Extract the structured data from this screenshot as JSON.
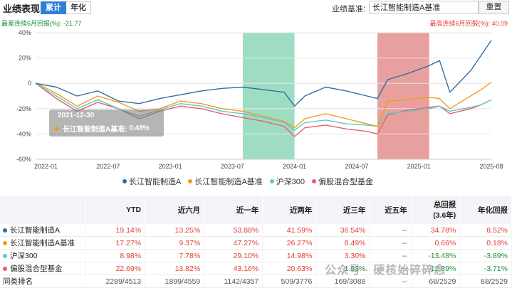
{
  "header": {
    "title": "业绩表现",
    "tabs": [
      "累计",
      "年化"
    ],
    "benchmark_label": "业绩基准:",
    "benchmark_value": "长江智能制造A基准",
    "reset_label": "重置"
  },
  "drawdown": {
    "min_text": "最差连续6月回报(%): -21.77",
    "max_text": "最高连续6月回报(%): 40.09"
  },
  "tooltip": {
    "date": "2021-12-30",
    "series": "长江智能制造A基准:",
    "value": "0.48%"
  },
  "colors": {
    "fund": "#2e6fa6",
    "benchmark": "#f39a1d",
    "csi300": "#5ec8c8",
    "hybrid": "#e5606a",
    "green_band": "#5fc79b",
    "red_band": "#d9605f"
  },
  "chart_data": {
    "type": "line",
    "x_ticks": [
      "2022-01",
      "2022-07",
      "2023-01",
      "2023-07",
      "2024-01",
      "2024-07",
      "2025-01",
      "2025-08"
    ],
    "y_ticks": [
      "40%",
      "20%",
      "0",
      "-20%",
      "-40%",
      "-60%"
    ],
    "ylim": [
      -60,
      40
    ],
    "grid": true,
    "legend_position": "bottom",
    "highlight_bands": [
      {
        "from": "2023-08",
        "to": "2024-01",
        "color": "green"
      },
      {
        "from": "2024-09",
        "to": "2025-02",
        "color": "red"
      }
    ],
    "x_dates": [
      "2021-12",
      "2022-02",
      "2022-04",
      "2022-06",
      "2022-08",
      "2022-10",
      "2022-12",
      "2023-02",
      "2023-04",
      "2023-06",
      "2023-08",
      "2023-10",
      "2023-12",
      "2024-01",
      "2024-02",
      "2024-04",
      "2024-06",
      "2024-08",
      "2024-09",
      "2024-10",
      "2024-12",
      "2025-02",
      "2025-03",
      "2025-04",
      "2025-06",
      "2025-07",
      "2025-08"
    ],
    "series": [
      {
        "name": "长江智能制造A",
        "values": [
          0,
          -3,
          -10,
          -6,
          -14,
          -16,
          -12,
          -9,
          -6,
          -4,
          -3,
          -5,
          -7,
          -18,
          -10,
          -3,
          -6,
          -10,
          -12,
          3,
          8,
          14,
          18,
          -7,
          10,
          22,
          34
        ]
      },
      {
        "name": "长江智能制造A基准",
        "values": [
          0.48,
          -8,
          -18,
          -10,
          -15,
          -22,
          -20,
          -14,
          -16,
          -20,
          -22,
          -26,
          -30,
          -35,
          -28,
          -24,
          -28,
          -32,
          -34,
          -14,
          -13,
          -11,
          -12,
          -20,
          -10,
          -5,
          1
        ]
      },
      {
        "name": "沪深300",
        "values": [
          0,
          -10,
          -20,
          -13,
          -20,
          -26,
          -21,
          -16,
          -18,
          -22,
          -24,
          -27,
          -31,
          -37,
          -31,
          -29,
          -32,
          -33,
          -34,
          -24,
          -22,
          -20,
          -18,
          -22,
          -19,
          -17,
          -13
        ]
      },
      {
        "name": "偏股混合型基金",
        "values": [
          0,
          -12,
          -22,
          -15,
          -20,
          -28,
          -22,
          -18,
          -20,
          -24,
          -27,
          -30,
          -34,
          -42,
          -35,
          -33,
          -36,
          -38,
          -40,
          -25,
          -21,
          -19,
          -18,
          -24,
          -20,
          -17,
          -13
        ]
      }
    ]
  },
  "table": {
    "headers": [
      "",
      "YTD",
      "近六月",
      "近一年",
      "近两年",
      "近三年",
      "近五年",
      "总回报\n(3.6年)",
      "年化回报"
    ],
    "rows": [
      {
        "name": "长江智能制造A",
        "values": [
          "19.14%",
          "13.25%",
          "53.88%",
          "41.59%",
          "36.54%",
          "--",
          "34.78%",
          "8.52%"
        ],
        "colors": [
          "red",
          "red",
          "red",
          "red",
          "red",
          "gray",
          "red",
          "red"
        ]
      },
      {
        "name": "长江智能制造A基准",
        "values": [
          "17.27%",
          "9.37%",
          "47.27%",
          "26.27%",
          "8.49%",
          "--",
          "0.66%",
          "0.18%"
        ],
        "colors": [
          "red",
          "red",
          "red",
          "red",
          "red",
          "gray",
          "red",
          "red"
        ]
      },
      {
        "name": "沪深300",
        "values": [
          "8.98%",
          "7.78%",
          "29.10%",
          "14.98%",
          "3.30%",
          "--",
          "-13.48%",
          "-3.89%"
        ],
        "colors": [
          "red",
          "red",
          "red",
          "red",
          "red",
          "gray",
          "green",
          "green"
        ]
      },
      {
        "name": "偏股混合型基金",
        "values": [
          "22.69%",
          "13.82%",
          "43.16%",
          "20.63%",
          "-1.53%",
          "--",
          "-12.89%",
          "-3.71%"
        ],
        "colors": [
          "red",
          "red",
          "red",
          "red",
          "green",
          "gray",
          "green",
          "green"
        ]
      },
      {
        "name": "同类排名",
        "values": [
          "2289/4513",
          "1899/4559",
          "1142/4357",
          "509/3776",
          "169/3088",
          "--",
          "68/2529",
          "68/2529"
        ],
        "colors": [
          "gray",
          "gray",
          "gray",
          "gray",
          "gray",
          "gray",
          "gray",
          "gray"
        ]
      }
    ]
  },
  "watermark": "公众号 · 硬核始碎碎念"
}
